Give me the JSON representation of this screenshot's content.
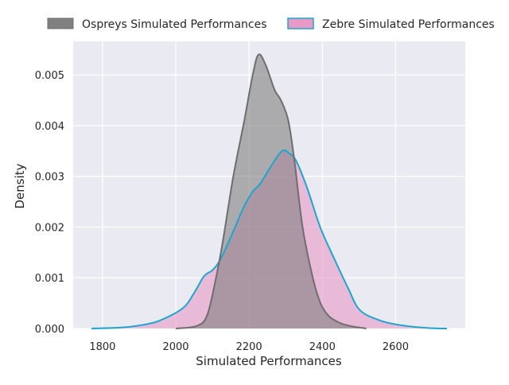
{
  "chart_data": {
    "type": "area",
    "title": "",
    "xlabel": "Simulated Performances",
    "ylabel": "Density",
    "xlim": [
      1720,
      2790
    ],
    "ylim": [
      0,
      0.00566
    ],
    "xticks": [
      1800,
      2000,
      2200,
      2400,
      2600
    ],
    "xtick_labels": [
      "1800",
      "2000",
      "2200",
      "2400",
      "2600"
    ],
    "yticks": [
      0,
      0.001,
      0.002,
      0.003,
      0.004,
      0.005
    ],
    "ytick_labels": [
      "0.000",
      "0.001",
      "0.002",
      "0.003",
      "0.004",
      "0.005"
    ],
    "grid": true,
    "legend_placement": "top (outside, above plot)",
    "series": [
      {
        "name": "Ospreys Simulated Performances",
        "fill": "#808080",
        "line": "#6e6e6e",
        "x": [
          2000,
          2057,
          2085,
          2107,
          2128,
          2157,
          2187,
          2210,
          2226,
          2245,
          2270,
          2287,
          2307,
          2324,
          2346,
          2374,
          2395,
          2417,
          2445,
          2476,
          2520
        ],
        "y": [
          0,
          5e-05,
          0.00025,
          0.0009,
          0.0017,
          0.003,
          0.0041,
          0.005,
          0.0054,
          0.0052,
          0.0047,
          0.0045,
          0.0041,
          0.0033,
          0.002,
          0.001,
          0.0005,
          0.00025,
          0.00012,
          5e-05,
          0
        ]
      },
      {
        "name": "Zebre Simulated Performances",
        "fill": "#e899c6",
        "line": "#1ca5d0",
        "x": [
          1770,
          1850,
          1900,
          1954,
          2019,
          2050,
          2077,
          2100,
          2121,
          2150,
          2186,
          2210,
          2229,
          2260,
          2290,
          2310,
          2329,
          2359,
          2394,
          2431,
          2470,
          2503,
          2561,
          2620,
          2690,
          2740
        ],
        "y": [
          0,
          2e-05,
          6e-05,
          0.00015,
          0.0004,
          0.0007,
          0.00103,
          0.00115,
          0.00135,
          0.0018,
          0.0024,
          0.0027,
          0.00284,
          0.0032,
          0.0035,
          0.00345,
          0.0033,
          0.00276,
          0.002,
          0.0014,
          0.0008,
          0.00036,
          0.00015,
          6e-05,
          1e-05,
          0
        ]
      }
    ]
  }
}
